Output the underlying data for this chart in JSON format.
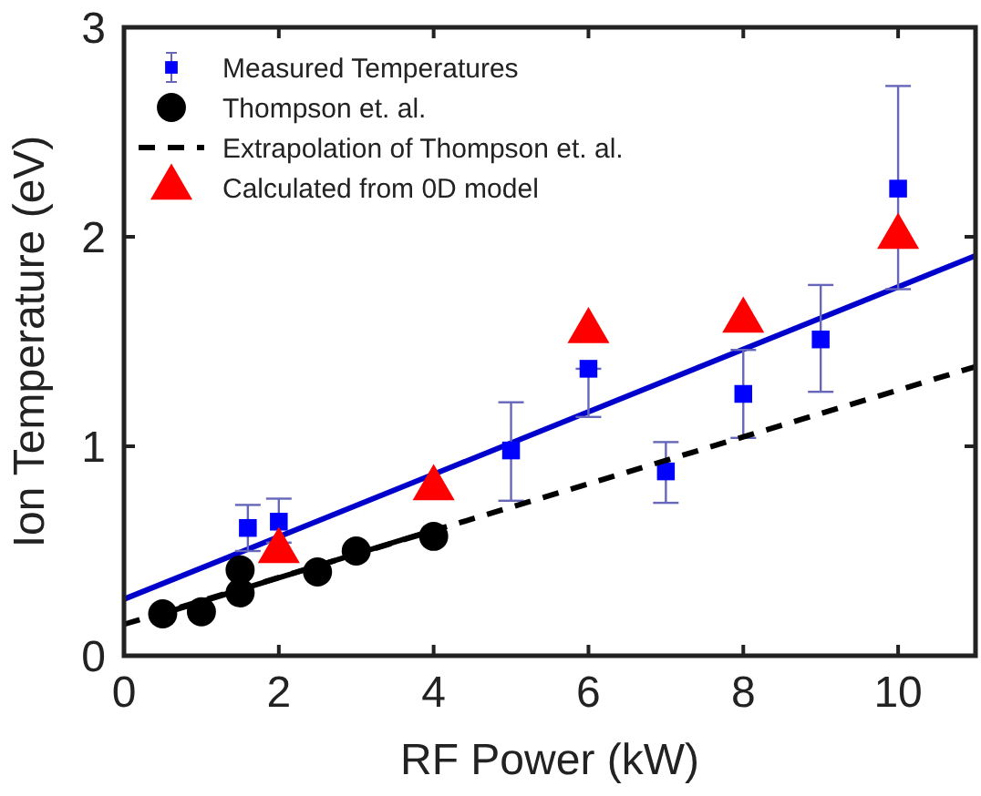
{
  "chart_data": {
    "type": "scatter",
    "xlabel": "RF Power (kW)",
    "ylabel": "Ion Temperature (eV)",
    "xlim": [
      0,
      11
    ],
    "xticks": [
      0,
      2,
      4,
      6,
      8,
      10
    ],
    "ylim": [
      0,
      3
    ],
    "yticks": [
      0,
      1,
      2,
      3
    ],
    "grid": false,
    "legend": "top left",
    "series": [
      {
        "type": "line",
        "color": "#0000cc",
        "marker": "none",
        "line_style": "solid",
        "x": [
          0,
          11
        ],
        "values": [
          0.27,
          1.91
        ]
      },
      {
        "type": "line",
        "color": "#000000",
        "marker": "none",
        "line_style": "solid",
        "x": [
          0.4,
          4
        ],
        "values": [
          0.19,
          0.6
        ]
      },
      {
        "name": "Measured Temperatures",
        "color": "#0000ff",
        "marker": "square",
        "x": [
          1.6,
          2,
          5,
          6,
          7,
          8,
          9,
          10
        ],
        "values": [
          0.61,
          0.64,
          0.98,
          1.37,
          0.88,
          1.25,
          1.51,
          2.23
        ],
        "errors": [
          [
            0.5,
            0.72
          ],
          [
            0.54,
            0.75
          ],
          [
            0.74,
            1.21
          ],
          [
            1.14,
            1.37
          ],
          [
            0.73,
            1.02
          ],
          [
            1.04,
            1.46
          ],
          [
            1.26,
            1.77
          ],
          [
            1.75,
            2.72
          ]
        ]
      },
      {
        "name": "Thompson et. al.",
        "color": "#000000",
        "marker": "circle",
        "x": [
          0.5,
          1,
          1.5,
          1.5,
          2.5,
          3,
          4
        ],
        "values": [
          0.2,
          0.21,
          0.3,
          0.41,
          0.4,
          0.5,
          0.57
        ]
      },
      {
        "name": "Extrapolation of Thompson et. al.",
        "type": "line",
        "color": "#000000",
        "marker": "none",
        "line_style": "dashed",
        "x": [
          0,
          11
        ],
        "values": [
          0.15,
          1.38
        ]
      },
      {
        "name": "Calculated from 0D model",
        "color": "#ff0000",
        "marker": "triangle",
        "x": [
          2,
          4,
          6,
          8,
          10
        ],
        "values": [
          0.5,
          0.8,
          1.55,
          1.6,
          2.0
        ]
      }
    ]
  }
}
